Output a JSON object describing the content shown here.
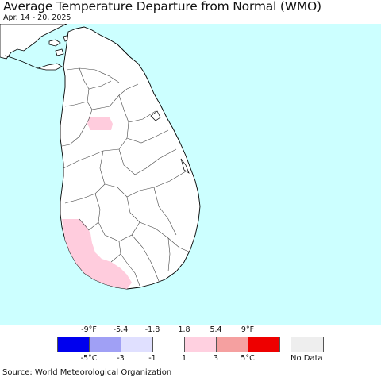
{
  "header": {
    "title": "Average Temperature Departure from Normal (WMO)",
    "date_range": "Apr. 14 - 20, 2025"
  },
  "map": {
    "ocean_color": "#ccffff",
    "land_color": "#ffffff",
    "border_color": "#000000",
    "anomaly_fill_color": "#ffccdd"
  },
  "legend": {
    "fahrenheit_labels": [
      "-9°F",
      "-5.4",
      "-1.8",
      "1.8",
      "5.4",
      "9°F"
    ],
    "celsius_labels": [
      "-5°C",
      "-3",
      "-1",
      "1",
      "3",
      "5°C"
    ],
    "colors": [
      "#0000ee",
      "#a0a0f5",
      "#e0e0ff",
      "#ffffff",
      "#ffd0e0",
      "#f5a0a0",
      "#ee0000"
    ],
    "no_data_label": "No Data",
    "no_data_color": "#eeeeee"
  },
  "footer": {
    "source": "Source: World Meteorological Organization"
  }
}
